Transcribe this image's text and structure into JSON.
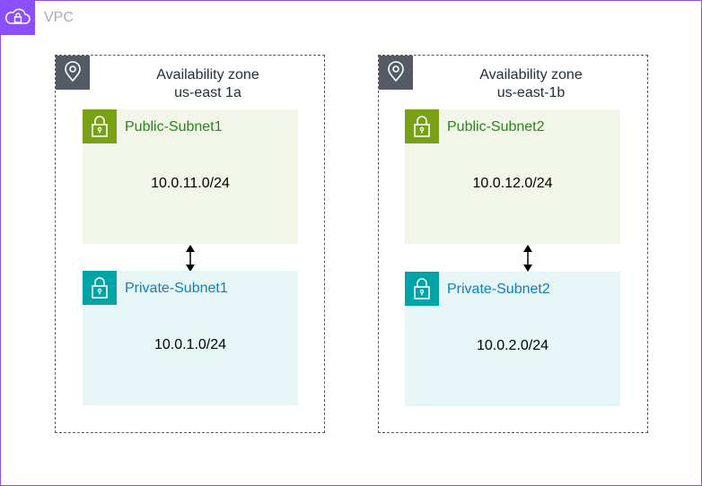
{
  "vpc": {
    "label": "VPC",
    "icon": "cloud-lock-icon"
  },
  "zones": [
    {
      "title_line1": "Availability zone",
      "title_line2": "us-east 1a",
      "public_subnet": {
        "name": "Public-Subnet1",
        "cidr": "10.0.11.0/24"
      },
      "private_subnet": {
        "name": "Private-Subnet1",
        "cidr": "10.0.1.0/24"
      }
    },
    {
      "title_line1": "Availability zone",
      "title_line2": "us-east-1b",
      "public_subnet": {
        "name": "Public-Subnet2",
        "cidr": "10.0.12.0/24"
      },
      "private_subnet": {
        "name": "Private-Subnet2",
        "cidr": "10.0.2.0/24"
      }
    }
  ],
  "colors": {
    "vpc": "#8c4fff",
    "zone": "#545b64",
    "public": "#7aa116",
    "private": "#00a4a6"
  }
}
